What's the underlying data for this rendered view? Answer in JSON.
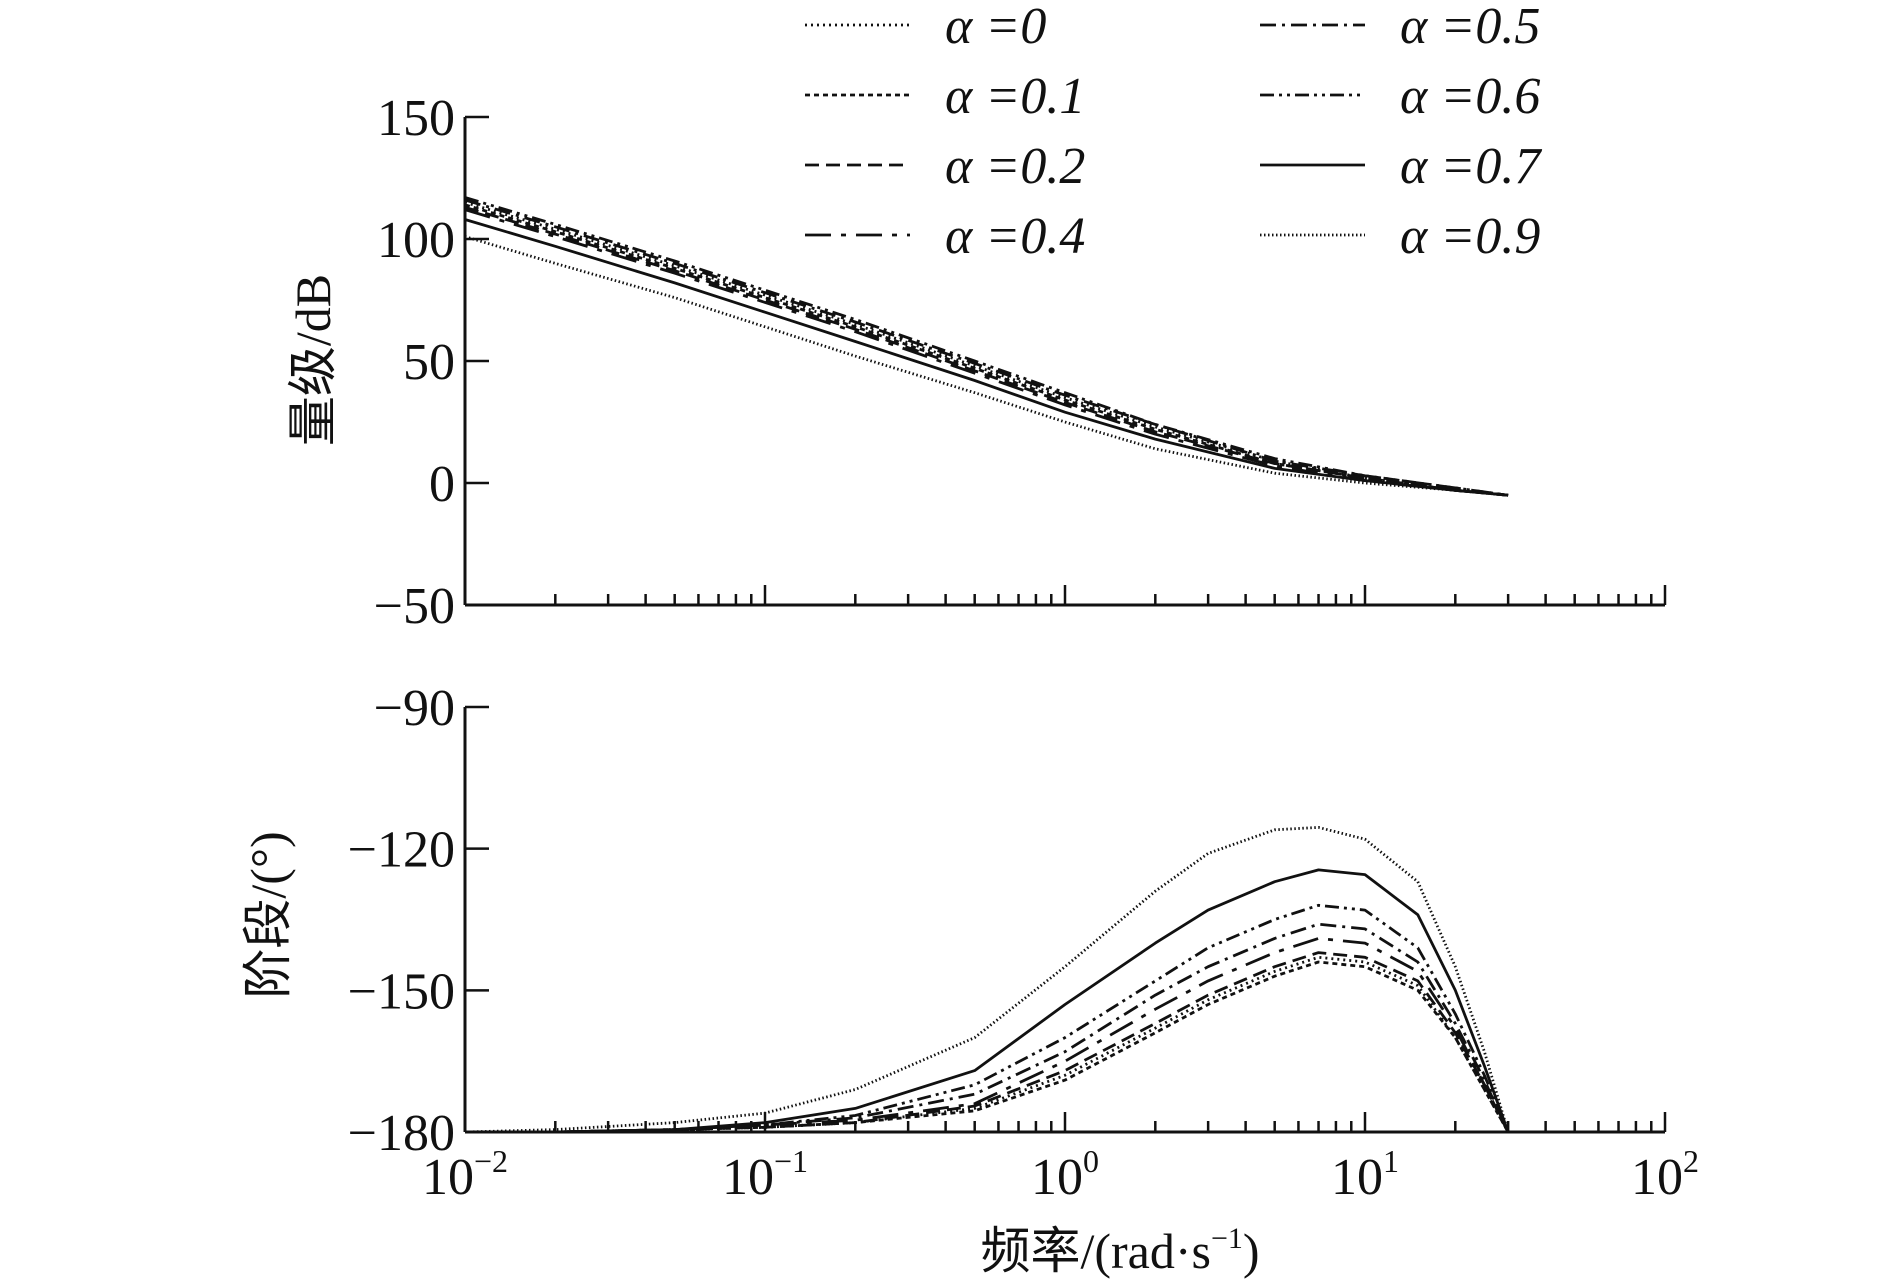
{
  "chart_data": [
    {
      "type": "line",
      "panel": "magnitude",
      "xscale": "log",
      "xlim": [
        0.01,
        100
      ],
      "ylim": [
        -50,
        150
      ],
      "ylabel": "量级/dB",
      "xlabel": "",
      "yticks": [
        -50,
        0,
        50,
        100,
        150
      ],
      "ytick_labels": [
        "−50",
        "0",
        "50",
        "100",
        "150"
      ],
      "x": [
        0.01,
        0.02,
        0.05,
        0.1,
        0.2,
        0.5,
        1,
        2,
        5,
        10,
        20,
        30
      ],
      "series": [
        {
          "name": "α =0",
          "dash": "2 4",
          "values": [
            115,
            104,
            89,
            77,
            65,
            48,
            35,
            23,
            9,
            2,
            -3,
            -5
          ]
        },
        {
          "name": "α =0.1",
          "dash": "5 4",
          "values": [
            114,
            103,
            88,
            76,
            64,
            47,
            34,
            22,
            8,
            2,
            -3,
            -5
          ]
        },
        {
          "name": "α =0.2",
          "dash": "14 7",
          "values": [
            113,
            102,
            87,
            75,
            63,
            46,
            33,
            21,
            8,
            2,
            -3,
            -5
          ]
        },
        {
          "name": "α =0.4",
          "dash": "26 10 5 10",
          "values": [
            112,
            101,
            86,
            74,
            62,
            45,
            32,
            20,
            7,
            1,
            -3,
            -5
          ]
        },
        {
          "name": "α =0.5",
          "dash": "16 6 3 6",
          "values": [
            116,
            105,
            90,
            78,
            66,
            49,
            36,
            24,
            9,
            3,
            -2,
            -5
          ]
        },
        {
          "name": "α =0.6",
          "dash": "14 5 3 5 3 5",
          "values": [
            117,
            106,
            91,
            79,
            67,
            50,
            37,
            24,
            10,
            3,
            -2,
            -5
          ]
        },
        {
          "name": "α =0.7",
          "dash": "",
          "values": [
            108,
            97,
            82,
            70,
            58,
            42,
            29,
            18,
            6,
            1,
            -3,
            -5
          ]
        },
        {
          "name": "α =0.9",
          "dash": "1.5 2.5",
          "values": [
            101,
            90,
            76,
            64,
            52,
            37,
            25,
            14,
            4,
            0,
            -3,
            -5
          ]
        }
      ]
    },
    {
      "type": "line",
      "panel": "phase",
      "xscale": "log",
      "xlim": [
        0.01,
        100
      ],
      "ylim": [
        -180,
        -90
      ],
      "ylabel": "阶段/(°)",
      "xlabel": "频率/(rad·s",
      "xlabel_sup": "−1",
      "xlabel_tail": ")",
      "yticks": [
        -180,
        -150,
        -120,
        -90
      ],
      "ytick_labels": [
        "−180",
        "−150",
        "−120",
        "−90"
      ],
      "xtick_base": "10",
      "xtick_exps": [
        "−2",
        "−1",
        "0",
        "1",
        "2"
      ],
      "x": [
        0.01,
        0.02,
        0.05,
        0.1,
        0.2,
        0.5,
        1,
        2,
        3,
        5,
        7,
        10,
        15,
        20,
        25,
        30
      ],
      "series": [
        {
          "name": "α =0",
          "values": [
            -180,
            -180,
            -179.5,
            -179,
            -178,
            -175,
            -168,
            -158,
            -152,
            -146,
            -143,
            -144,
            -149,
            -160,
            -171,
            -180
          ]
        },
        {
          "name": "α =0.1",
          "values": [
            -180,
            -180,
            -179.5,
            -179,
            -178,
            -175.5,
            -169,
            -159,
            -153,
            -147,
            -144,
            -145,
            -150,
            -160,
            -171,
            -180
          ]
        },
        {
          "name": "α =0.2",
          "values": [
            -180,
            -180,
            -179.5,
            -179,
            -178,
            -174.5,
            -167,
            -157,
            -151,
            -145,
            -142,
            -143,
            -148,
            -159,
            -170,
            -180
          ]
        },
        {
          "name": "α =0.4",
          "values": [
            -180,
            -180,
            -179.5,
            -178.5,
            -177.5,
            -174,
            -165,
            -154,
            -148,
            -142,
            -139,
            -140,
            -146,
            -158,
            -170,
            -180
          ]
        },
        {
          "name": "α =0.5",
          "values": [
            -180,
            -180,
            -179.5,
            -178.5,
            -177,
            -172,
            -163,
            -151,
            -145,
            -139,
            -136,
            -137,
            -144,
            -157,
            -169,
            -180
          ]
        },
        {
          "name": "α =0.6",
          "values": [
            -180,
            -180,
            -179.5,
            -178.5,
            -176.5,
            -170,
            -160,
            -148,
            -141,
            -135,
            -132,
            -133,
            -141,
            -155,
            -168,
            -180
          ]
        },
        {
          "name": "α =0.7",
          "values": [
            -180,
            -180,
            -179.5,
            -178,
            -175,
            -167,
            -153,
            -140,
            -133,
            -127,
            -124.5,
            -125.5,
            -134,
            -150,
            -166,
            -180
          ]
        },
        {
          "name": "α =0.9",
          "values": [
            -180,
            -179.5,
            -178,
            -176,
            -171,
            -160,
            -145,
            -129,
            -121,
            -116,
            -115.5,
            -118,
            -127,
            -145,
            -163,
            -180
          ]
        }
      ]
    }
  ]
}
